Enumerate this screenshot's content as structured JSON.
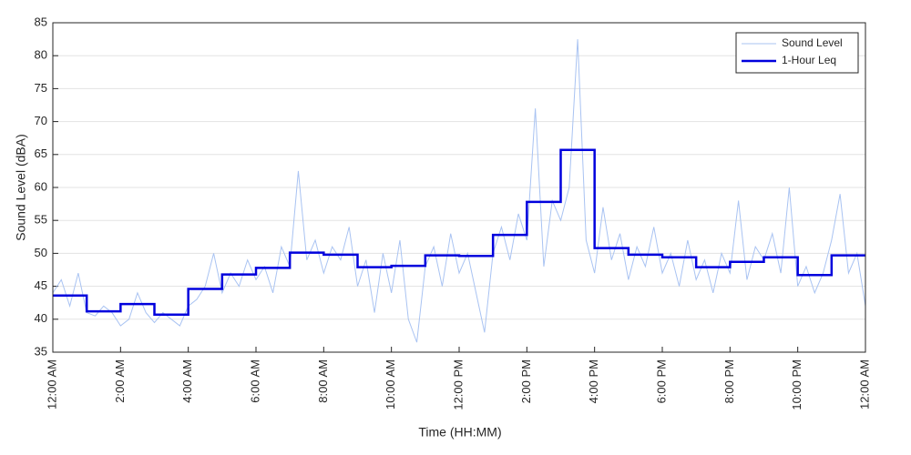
{
  "chart_data": {
    "type": "line",
    "xlabel": "Time (HH:MM)",
    "ylabel": "Sound Level (dBA)",
    "xlim": [
      0,
      24
    ],
    "ylim": [
      35,
      85
    ],
    "xticks": [
      {
        "value": 0,
        "label": "12:00 AM"
      },
      {
        "value": 2,
        "label": "2:00 AM"
      },
      {
        "value": 4,
        "label": "4:00 AM"
      },
      {
        "value": 6,
        "label": "6:00 AM"
      },
      {
        "value": 8,
        "label": "8:00 AM"
      },
      {
        "value": 10,
        "label": "10:00 AM"
      },
      {
        "value": 12,
        "label": "12:00 PM"
      },
      {
        "value": 14,
        "label": "2:00 PM"
      },
      {
        "value": 16,
        "label": "4:00 PM"
      },
      {
        "value": 18,
        "label": "6:00 PM"
      },
      {
        "value": 20,
        "label": "8:00 PM"
      },
      {
        "value": 22,
        "label": "10:00 PM"
      },
      {
        "value": 24,
        "label": "12:00 AM"
      }
    ],
    "yticks": [
      35,
      40,
      45,
      50,
      55,
      60,
      65,
      70,
      75,
      80,
      85
    ],
    "grid": true,
    "legend": "upper right",
    "series": [
      {
        "name": "Sound Level",
        "color": "#a9c3f2",
        "style": "line",
        "x": [
          0,
          0.25,
          0.5,
          0.75,
          1,
          1.25,
          1.5,
          1.75,
          2,
          2.25,
          2.5,
          2.75,
          3,
          3.25,
          3.5,
          3.75,
          4,
          4.25,
          4.5,
          4.75,
          5,
          5.25,
          5.5,
          5.75,
          6,
          6.25,
          6.5,
          6.75,
          7,
          7.25,
          7.5,
          7.75,
          8,
          8.25,
          8.5,
          8.75,
          9,
          9.25,
          9.5,
          9.75,
          10,
          10.25,
          10.5,
          10.75,
          11,
          11.25,
          11.5,
          11.75,
          12,
          12.25,
          12.5,
          12.75,
          13,
          13.25,
          13.5,
          13.75,
          14,
          14.25,
          14.5,
          14.75,
          15,
          15.25,
          15.5,
          15.75,
          16,
          16.25,
          16.5,
          16.75,
          17,
          17.25,
          17.5,
          17.75,
          18,
          18.25,
          18.5,
          18.75,
          19,
          19.25,
          19.5,
          19.75,
          20,
          20.25,
          20.5,
          20.75,
          21,
          21.25,
          21.5,
          21.75,
          22,
          22.25,
          22.5,
          22.75,
          23,
          23.25,
          23.5,
          23.75,
          24
        ],
        "values": [
          44,
          46,
          42,
          47,
          41,
          40.5,
          42,
          41,
          39,
          40,
          44,
          41,
          39.5,
          41,
          40,
          39,
          42,
          43,
          45,
          50,
          44,
          47,
          45,
          49,
          46,
          48,
          44,
          51,
          48,
          62.5,
          49,
          52,
          47,
          51,
          49,
          54,
          45,
          49,
          41,
          50,
          44,
          52,
          40,
          36.5,
          48,
          51,
          45,
          53,
          47,
          50,
          44,
          38,
          50,
          54,
          49,
          56,
          52,
          72,
          48,
          58,
          55,
          60,
          82.5,
          52,
          47,
          57,
          49,
          53,
          46,
          51,
          48,
          54,
          47,
          50,
          45,
          52,
          46,
          49,
          44,
          50,
          47,
          58,
          46,
          51,
          49,
          53,
          47,
          60,
          45,
          48,
          44,
          47,
          52,
          59,
          47,
          50,
          42
        ]
      },
      {
        "name": "1-Hour Leq",
        "color": "#0000dd",
        "style": "step",
        "x": [
          0,
          1,
          2,
          3,
          4,
          5,
          6,
          7,
          8,
          9,
          10,
          11,
          12,
          13,
          14,
          15,
          16,
          17,
          18,
          19,
          20,
          21,
          22,
          23
        ],
        "values": [
          43.6,
          41.2,
          42.3,
          40.7,
          44.6,
          46.8,
          47.8,
          50.1,
          49.8,
          47.9,
          48.1,
          49.7,
          49.6,
          52.8,
          57.8,
          65.7,
          50.8,
          49.8,
          49.4,
          47.9,
          48.7,
          49.4,
          46.7,
          49.7
        ]
      }
    ]
  }
}
